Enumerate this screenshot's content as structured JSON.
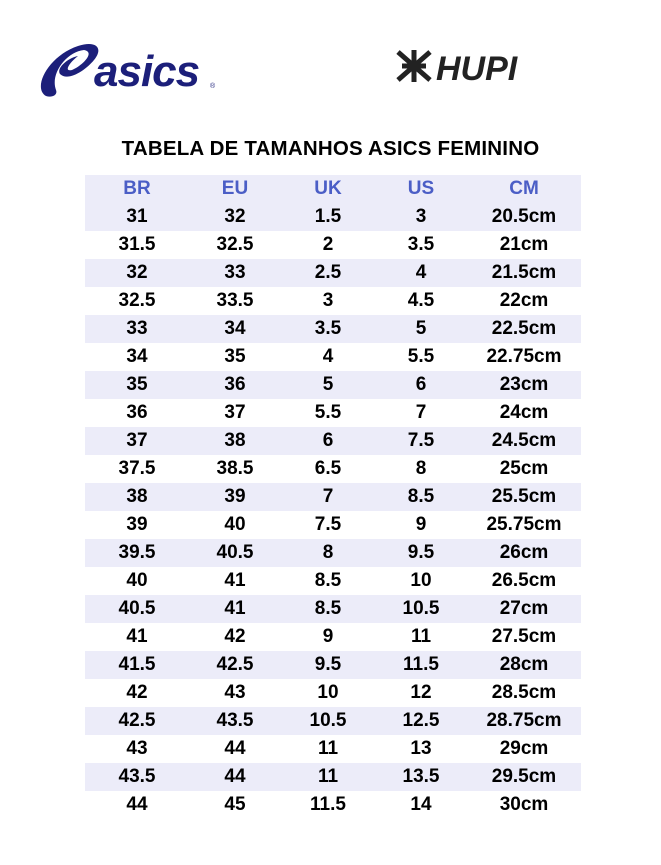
{
  "logos": {
    "left": "asics",
    "right": "HUPI"
  },
  "colors": {
    "asics_brand": "#1c1f7a",
    "header_text": "#4b5ec6",
    "row_shade": "#ececf9"
  },
  "title": "TABELA DE TAMANHOS ASICS FEMININO",
  "table": {
    "headers": [
      "BR",
      "EU",
      "UK",
      "US",
      "CM"
    ],
    "rows": [
      [
        "31",
        "32",
        "1.5",
        "3",
        "20.5cm"
      ],
      [
        "31.5",
        "32.5",
        "2",
        "3.5",
        "21cm"
      ],
      [
        "32",
        "33",
        "2.5",
        "4",
        "21.5cm"
      ],
      [
        "32.5",
        "33.5",
        "3",
        "4.5",
        "22cm"
      ],
      [
        "33",
        "34",
        "3.5",
        "5",
        "22.5cm"
      ],
      [
        "34",
        "35",
        "4",
        "5.5",
        "22.75cm"
      ],
      [
        "35",
        "36",
        "5",
        "6",
        "23cm"
      ],
      [
        "36",
        "37",
        "5.5",
        "7",
        "24cm"
      ],
      [
        "37",
        "38",
        "6",
        "7.5",
        "24.5cm"
      ],
      [
        "37.5",
        "38.5",
        "6.5",
        "8",
        "25cm"
      ],
      [
        "38",
        "39",
        "7",
        "8.5",
        "25.5cm"
      ],
      [
        "39",
        "40",
        "7.5",
        "9",
        "25.75cm"
      ],
      [
        "39.5",
        "40.5",
        "8",
        "9.5",
        "26cm"
      ],
      [
        "40",
        "41",
        "8.5",
        "10",
        "26.5cm"
      ],
      [
        "40.5",
        "41",
        "8.5",
        "10.5",
        "27cm"
      ],
      [
        "41",
        "42",
        "9",
        "11",
        "27.5cm"
      ],
      [
        "41.5",
        "42.5",
        "9.5",
        "11.5",
        "28cm"
      ],
      [
        "42",
        "43",
        "10",
        "12",
        "28.5cm"
      ],
      [
        "42.5",
        "43.5",
        "10.5",
        "12.5",
        "28.75cm"
      ],
      [
        "43",
        "44",
        "11",
        "13",
        "29cm"
      ],
      [
        "43.5",
        "44",
        "11",
        "13.5",
        "29.5cm"
      ],
      [
        "44",
        "45",
        "11.5",
        "14",
        "30cm"
      ]
    ]
  }
}
